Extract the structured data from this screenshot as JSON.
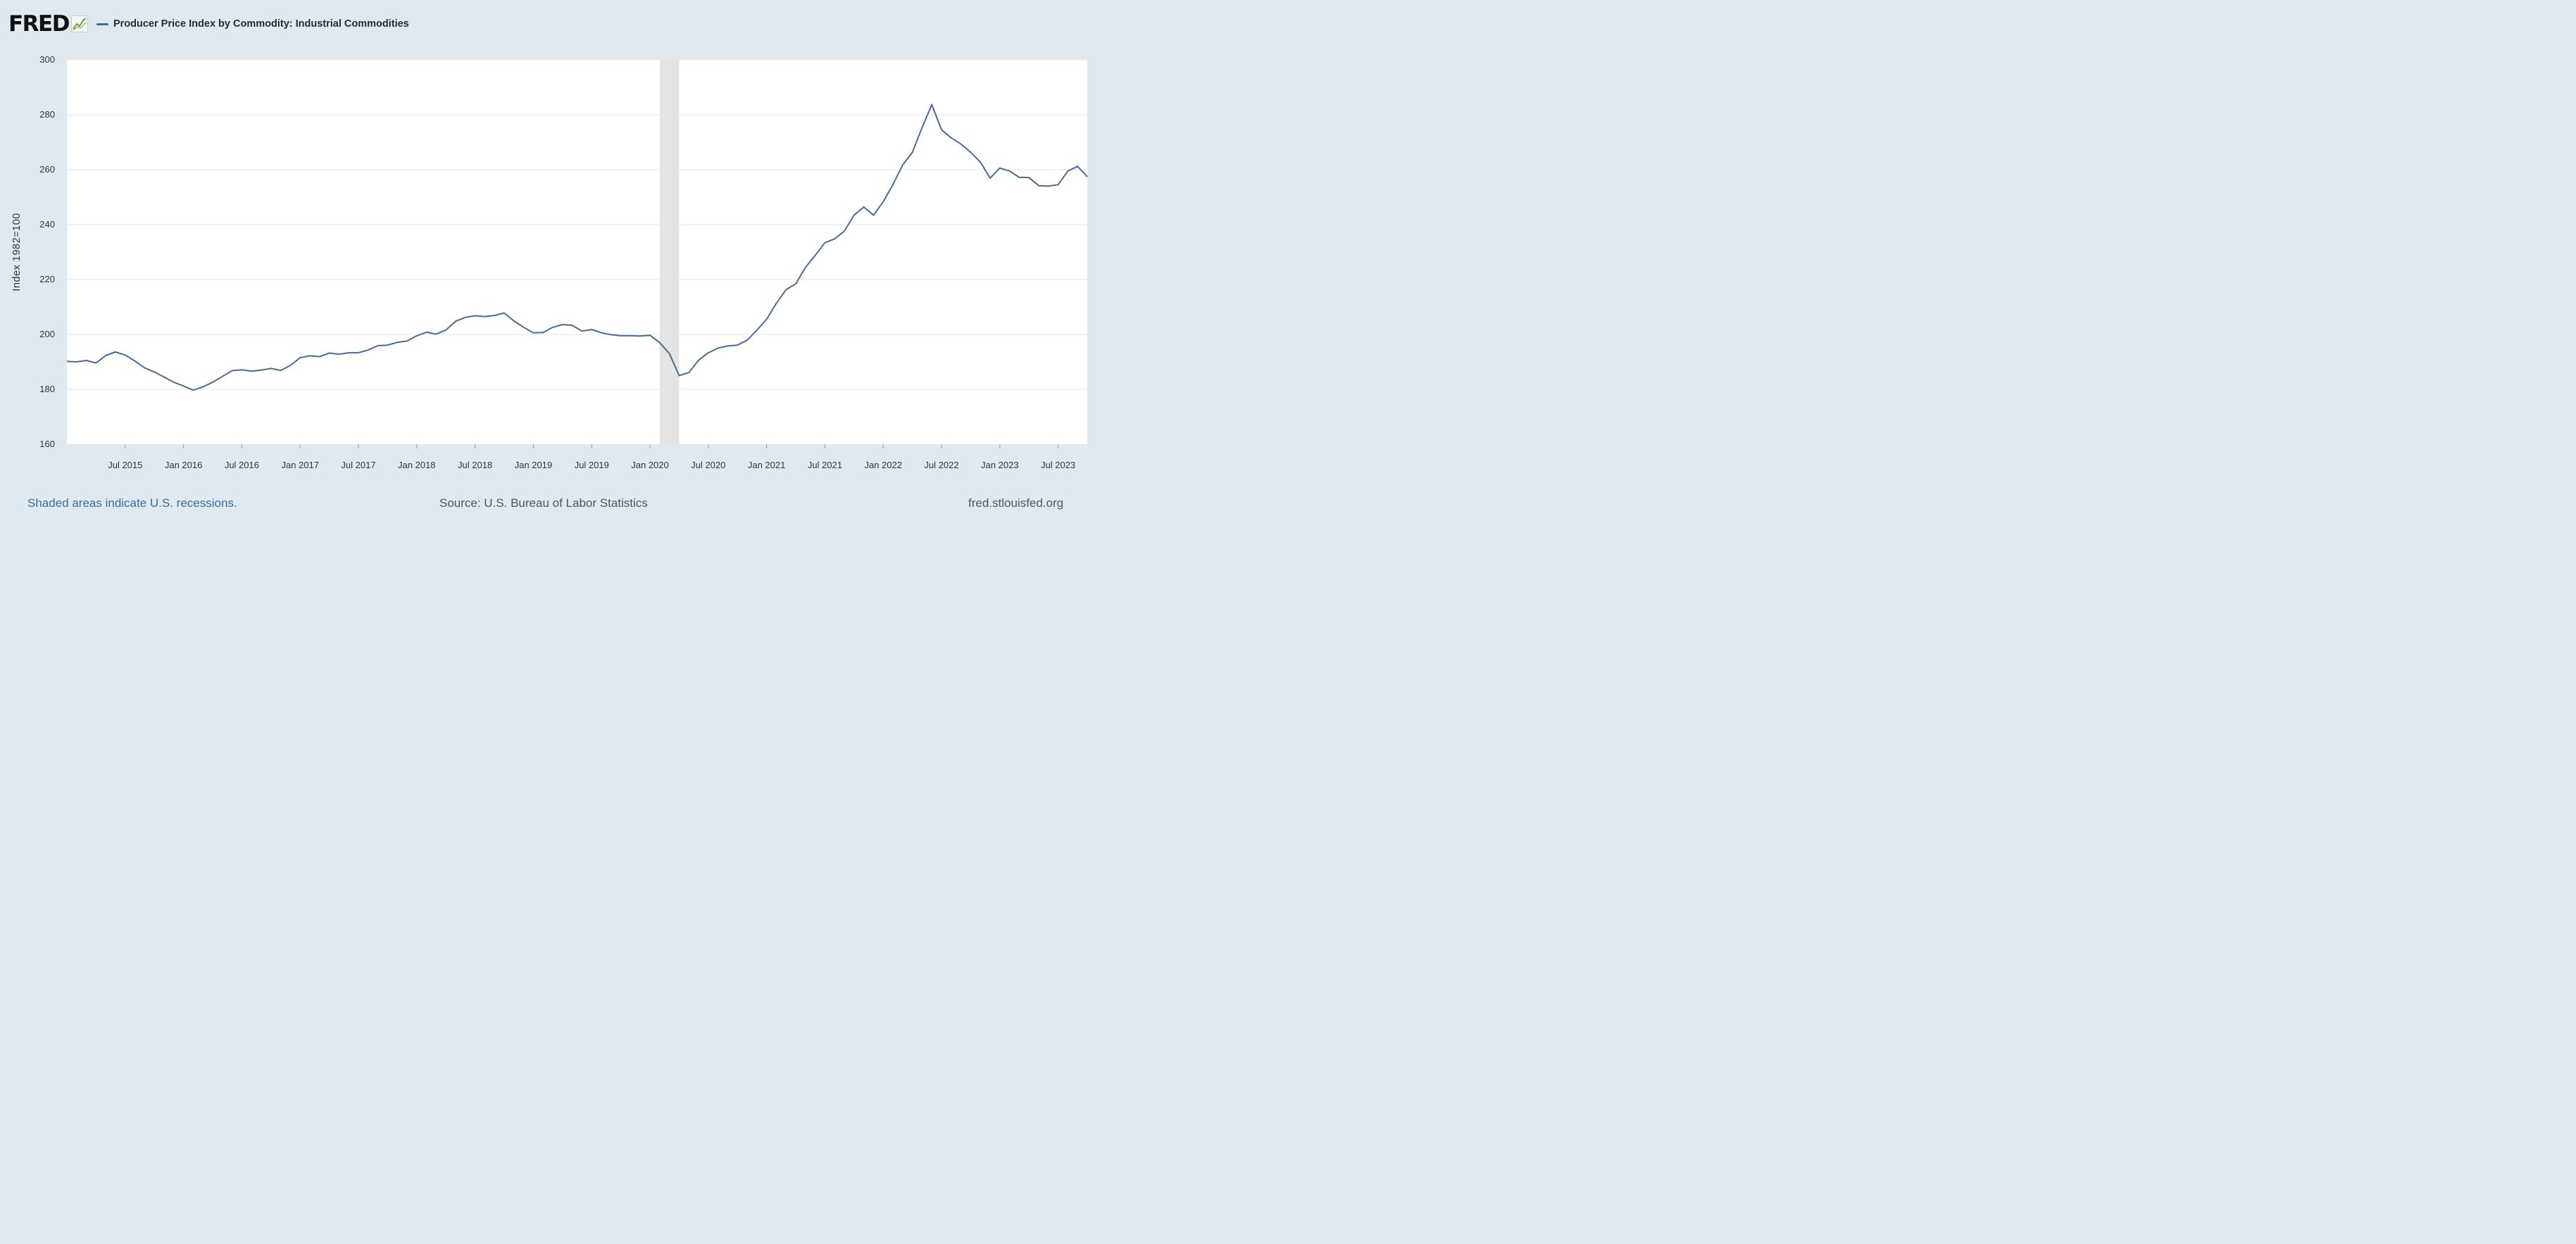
{
  "header": {
    "logo_text": "FRED",
    "series_title": "Producer Price Index by Commodity: Industrial Commodities"
  },
  "footer": {
    "recession_note": "Shaded areas indicate U.S. recessions.",
    "source": "Source: U.S. Bureau of Labor Statistics",
    "site": "fred.stlouisfed.org"
  },
  "colors": {
    "background": "#e1e9f0",
    "plot_background": "#ffffff",
    "series_line": "#4a6b96",
    "recession_shade": "#e4e4e4",
    "gridline": "#e6e6e6",
    "link_text": "#3f6ba0"
  },
  "icons": {
    "logo_graph": "trend-graph-icon"
  },
  "chart_data": {
    "type": "line",
    "ylabel": "Index 1982=100",
    "ylim": [
      160,
      300
    ],
    "y_ticks": [
      160,
      180,
      200,
      220,
      240,
      260,
      280,
      300
    ],
    "x_tick_labels": [
      "Jul 2015",
      "Jan 2016",
      "Jul 2016",
      "Jan 2017",
      "Jul 2017",
      "Jan 2018",
      "Jul 2018",
      "Jan 2019",
      "Jul 2019",
      "Jan 2020",
      "Jul 2020",
      "Jan 2021",
      "Jul 2021",
      "Jan 2022",
      "Jul 2022",
      "Jan 2023",
      "Jul 2023"
    ],
    "x_tick_dates": [
      "2015-07",
      "2016-01",
      "2016-07",
      "2017-01",
      "2017-07",
      "2018-01",
      "2018-07",
      "2019-01",
      "2019-07",
      "2020-01",
      "2020-07",
      "2021-01",
      "2021-07",
      "2022-01",
      "2022-07",
      "2023-01",
      "2023-07"
    ],
    "x_range": [
      "2015-01",
      "2023-10"
    ],
    "grid": true,
    "legend_placement": "top-left",
    "recessions": [
      {
        "start": "2020-02",
        "end": "2020-04"
      }
    ],
    "series": [
      {
        "name": "Producer Price Index by Commodity: Industrial Commodities",
        "x": [
          "2015-01",
          "2015-02",
          "2015-03",
          "2015-04",
          "2015-05",
          "2015-06",
          "2015-07",
          "2015-08",
          "2015-09",
          "2015-10",
          "2015-11",
          "2015-12",
          "2016-01",
          "2016-02",
          "2016-03",
          "2016-04",
          "2016-05",
          "2016-06",
          "2016-07",
          "2016-08",
          "2016-09",
          "2016-10",
          "2016-11",
          "2016-12",
          "2017-01",
          "2017-02",
          "2017-03",
          "2017-04",
          "2017-05",
          "2017-06",
          "2017-07",
          "2017-08",
          "2017-09",
          "2017-10",
          "2017-11",
          "2017-12",
          "2018-01",
          "2018-02",
          "2018-03",
          "2018-04",
          "2018-05",
          "2018-06",
          "2018-07",
          "2018-08",
          "2018-09",
          "2018-10",
          "2018-11",
          "2018-12",
          "2019-01",
          "2019-02",
          "2019-03",
          "2019-04",
          "2019-05",
          "2019-06",
          "2019-07",
          "2019-08",
          "2019-09",
          "2019-10",
          "2019-11",
          "2019-12",
          "2020-01",
          "2020-02",
          "2020-03",
          "2020-04",
          "2020-05",
          "2020-06",
          "2020-07",
          "2020-08",
          "2020-09",
          "2020-10",
          "2020-11",
          "2020-12",
          "2021-01",
          "2021-02",
          "2021-03",
          "2021-04",
          "2021-05",
          "2021-06",
          "2021-07",
          "2021-08",
          "2021-09",
          "2021-10",
          "2021-11",
          "2021-12",
          "2022-01",
          "2022-02",
          "2022-03",
          "2022-04",
          "2022-05",
          "2022-06",
          "2022-07",
          "2022-08",
          "2022-09",
          "2022-10",
          "2022-11",
          "2022-12",
          "2023-01",
          "2023-02",
          "2023-03",
          "2023-04",
          "2023-05",
          "2023-06",
          "2023-07",
          "2023-08",
          "2023-09",
          "2023-10"
        ],
        "y": [
          190.2,
          190.0,
          190.5,
          189.6,
          192.3,
          193.6,
          192.5,
          190.3,
          187.8,
          186.3,
          184.5,
          182.6,
          181.2,
          179.7,
          180.9,
          182.6,
          184.7,
          186.8,
          187.1,
          186.6,
          187.0,
          187.6,
          186.9,
          188.7,
          191.5,
          192.2,
          191.9,
          193.2,
          192.8,
          193.3,
          193.3,
          194.3,
          195.9,
          196.1,
          197.1,
          197.6,
          199.5,
          200.8,
          200.1,
          201.6,
          204.8,
          206.2,
          206.8,
          206.5,
          206.9,
          207.8,
          204.9,
          202.6,
          200.6,
          200.7,
          202.6,
          203.6,
          203.3,
          201.2,
          201.8,
          200.6,
          199.9,
          199.5,
          199.5,
          199.4,
          199.7,
          197.0,
          193.0,
          185.0,
          186.1,
          190.6,
          193.3,
          195.0,
          195.8,
          196.1,
          197.9,
          201.5,
          205.5,
          211.3,
          216.3,
          218.4,
          224.4,
          228.8,
          233.4,
          234.8,
          237.6,
          243.4,
          246.4,
          243.4,
          248.3,
          254.6,
          261.7,
          266.3,
          275.3,
          283.7,
          274.5,
          271.6,
          269.3,
          266.3,
          262.8,
          256.9,
          260.6,
          259.5,
          257.2,
          257.1,
          254.2,
          254.0,
          254.5,
          259.5,
          261.2,
          257.4
        ]
      }
    ]
  }
}
